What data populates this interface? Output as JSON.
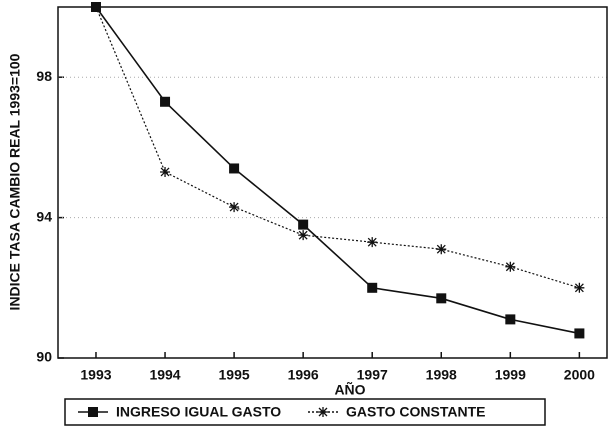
{
  "chart_data": {
    "type": "line",
    "y_label": "INDICE TASA CAMBIO REAL 1993=100",
    "x_label": "AÑO",
    "x": [
      1993,
      1994,
      1995,
      1996,
      1997,
      1998,
      1999,
      2000
    ],
    "xlim": [
      1992.45,
      2000.4
    ],
    "xticks": [
      1993,
      1994,
      1995,
      1996,
      1997,
      1998,
      1999,
      2000
    ],
    "ylim": [
      90,
      100
    ],
    "yticks": [
      90,
      94,
      98
    ],
    "grid": true,
    "legend": "bottom",
    "series": [
      {
        "name": "INGRESO IGUAL GASTO",
        "color": "#111111",
        "marker": "square",
        "style": "solid",
        "values": [
          100,
          97.3,
          95.4,
          93.8,
          92.0,
          91.7,
          91.1,
          90.7
        ]
      },
      {
        "name": "GASTO CONSTANTE",
        "color": "#111111",
        "marker": "star",
        "style": "dotted",
        "values": [
          100,
          95.3,
          94.3,
          93.5,
          93.3,
          93.1,
          92.6,
          92.0
        ]
      }
    ]
  }
}
